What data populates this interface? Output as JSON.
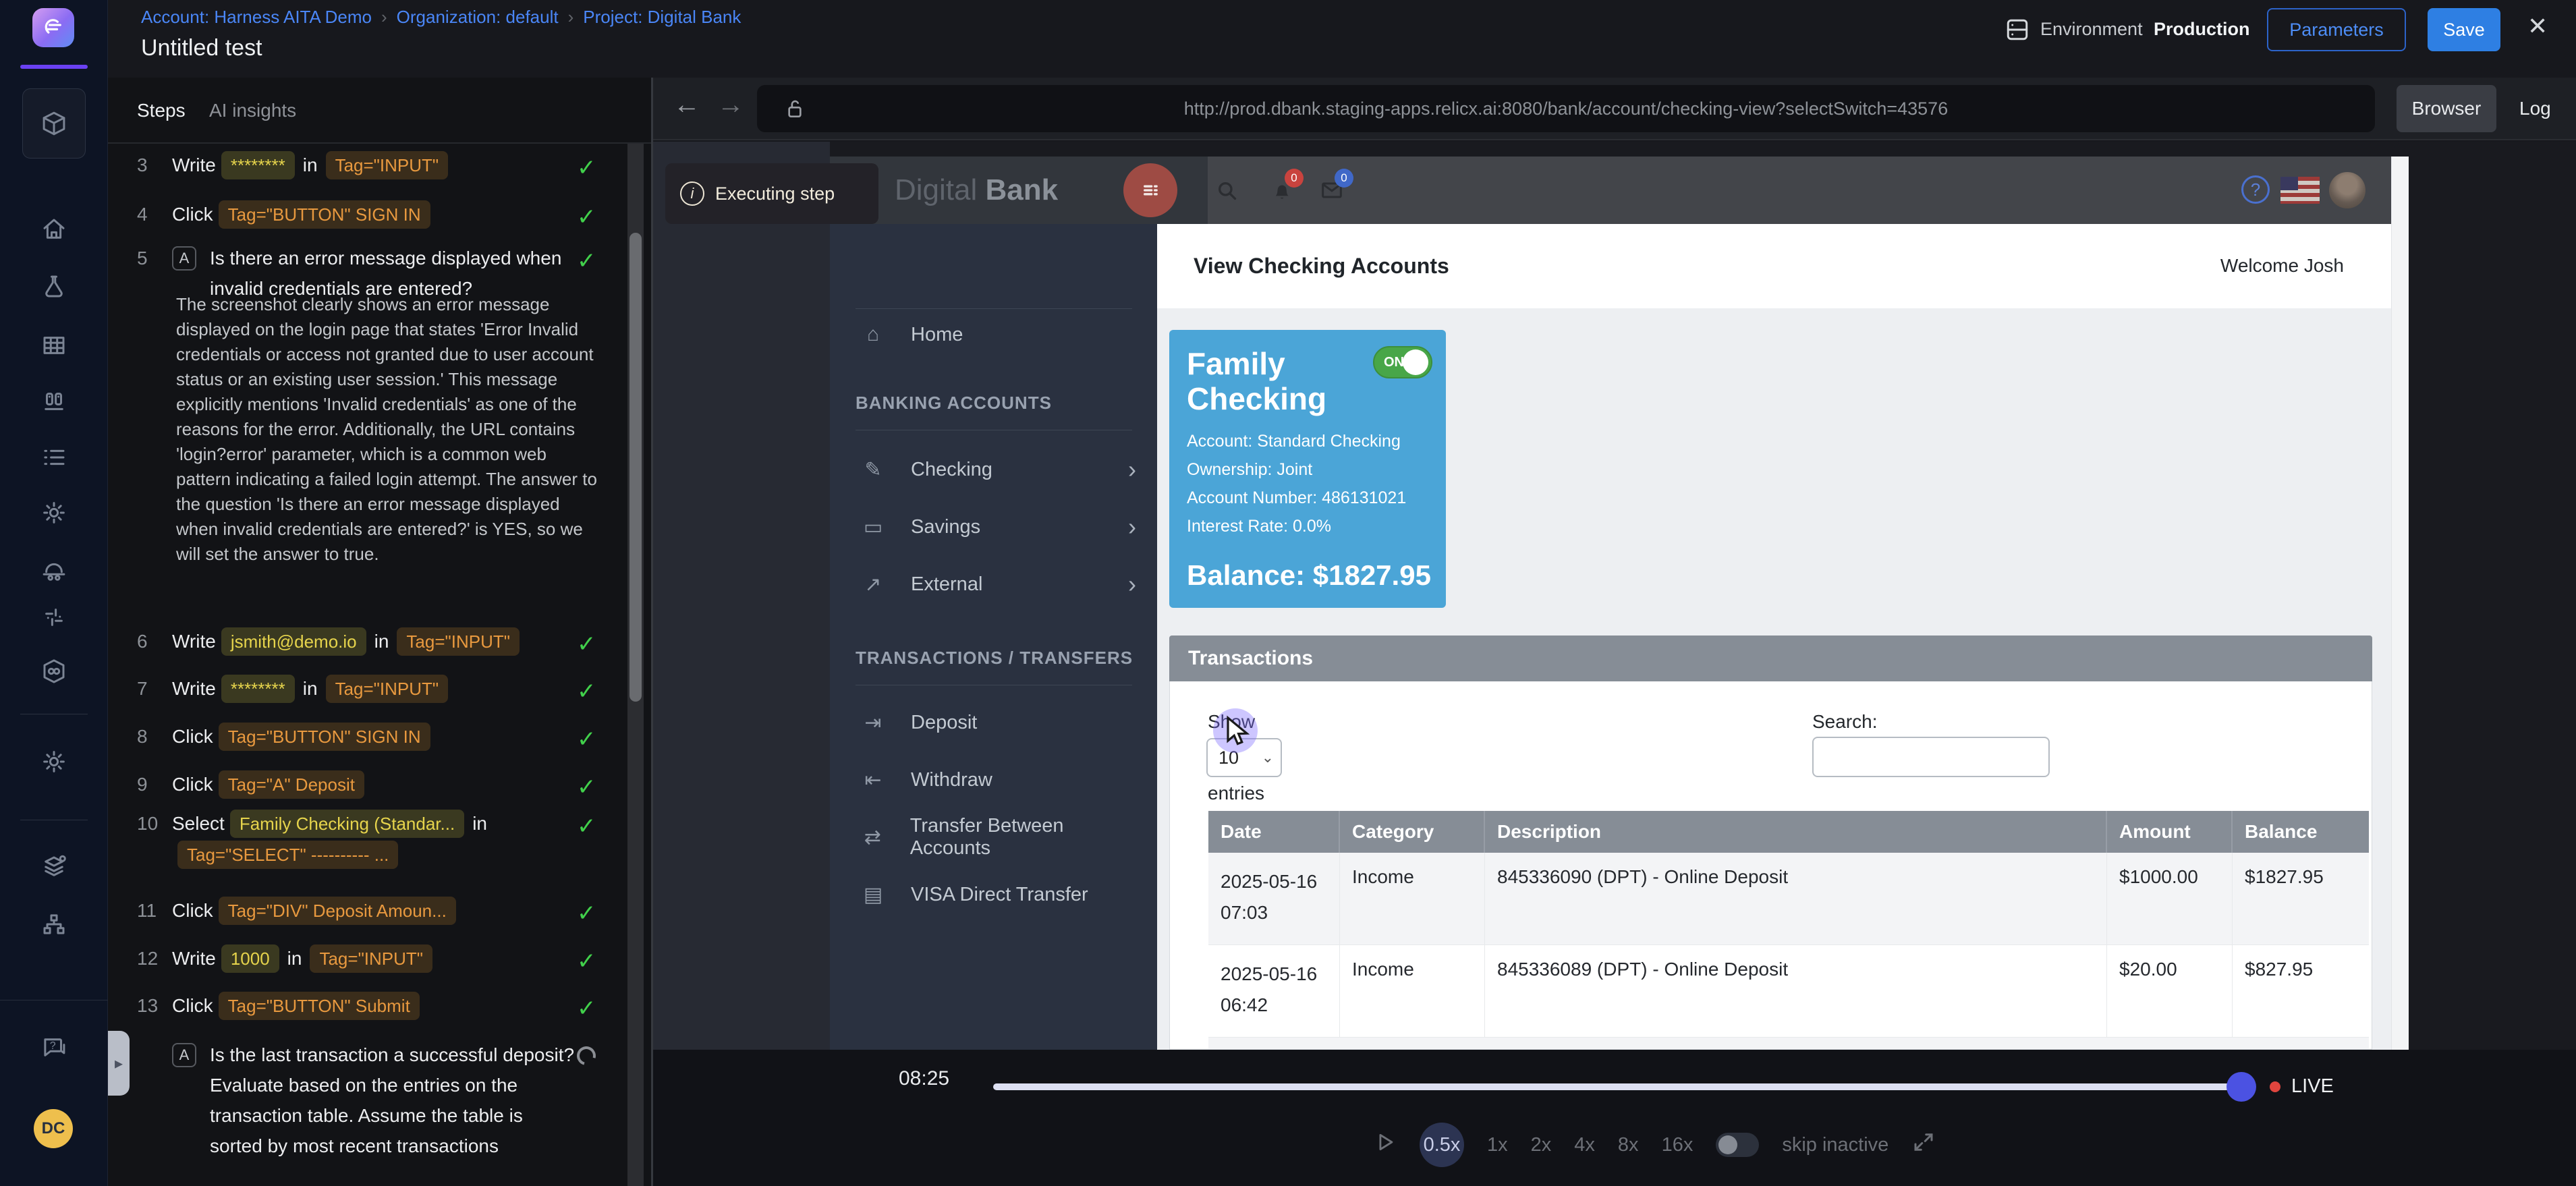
{
  "header": {
    "breadcrumb": [
      "Account: Harness AITA Demo",
      "Organization: default",
      "Project: Digital Bank"
    ],
    "title": "Untitled test",
    "environment_label": "Environment",
    "environment_value": "Production",
    "parameters_label": "Parameters",
    "save_label": "Save"
  },
  "app_sidebar": {
    "avatar_initials": "DC"
  },
  "steps_panel": {
    "tabs": [
      "Steps",
      "AI insights"
    ],
    "steps": [
      {
        "num": "3",
        "status": "pass",
        "segments": [
          {
            "k": "a",
            "t": "Write"
          },
          {
            "k": "v",
            "t": "********"
          },
          {
            "k": "p",
            "t": "in"
          },
          {
            "k": "s",
            "t": "Tag=\"INPUT\""
          }
        ]
      },
      {
        "num": "4",
        "status": "pass",
        "segments": [
          {
            "k": "a",
            "t": "Click"
          },
          {
            "k": "s",
            "t": "Tag=\"BUTTON\" SIGN IN"
          }
        ]
      },
      {
        "num": "5",
        "status": "pass",
        "badge": "A",
        "question": "Is there an error message displayed when invalid credentials are entered?"
      },
      {
        "num": "6",
        "status": "pass",
        "segments": [
          {
            "k": "a",
            "t": "Write"
          },
          {
            "k": "v",
            "t": "jsmith@demo.io"
          },
          {
            "k": "p",
            "t": "in"
          },
          {
            "k": "s",
            "t": "Tag=\"INPUT\""
          }
        ]
      },
      {
        "num": "7",
        "status": "pass",
        "segments": [
          {
            "k": "a",
            "t": "Write"
          },
          {
            "k": "v",
            "t": "********"
          },
          {
            "k": "p",
            "t": "in"
          },
          {
            "k": "s",
            "t": "Tag=\"INPUT\""
          }
        ]
      },
      {
        "num": "8",
        "status": "pass",
        "segments": [
          {
            "k": "a",
            "t": "Click"
          },
          {
            "k": "s",
            "t": "Tag=\"BUTTON\" SIGN IN"
          }
        ]
      },
      {
        "num": "9",
        "status": "pass",
        "segments": [
          {
            "k": "a",
            "t": "Click"
          },
          {
            "k": "s",
            "t": "Tag=\"A\" Deposit"
          }
        ]
      },
      {
        "num": "10",
        "status": "pass",
        "segments": [
          {
            "k": "a",
            "t": "Select"
          },
          {
            "k": "v",
            "t": "Family Checking (Standar..."
          },
          {
            "k": "p",
            "t": "in"
          },
          {
            "k": "br"
          },
          {
            "k": "s",
            "t": "Tag=\"SELECT\" ---------- ..."
          }
        ]
      },
      {
        "num": "11",
        "status": "pass",
        "segments": [
          {
            "k": "a",
            "t": "Click"
          },
          {
            "k": "s",
            "t": "Tag=\"DIV\" Deposit Amoun..."
          }
        ]
      },
      {
        "num": "12",
        "status": "pass",
        "segments": [
          {
            "k": "a",
            "t": "Write"
          },
          {
            "k": "v",
            "t": "1000"
          },
          {
            "k": "p",
            "t": "in"
          },
          {
            "k": "s",
            "t": "Tag=\"INPUT\""
          }
        ]
      },
      {
        "num": "13",
        "status": "pass",
        "segments": [
          {
            "k": "a",
            "t": "Click"
          },
          {
            "k": "s",
            "t": "Tag=\"BUTTON\" Submit"
          }
        ]
      },
      {
        "num": "",
        "status": "running",
        "badge": "A",
        "question": "Is the last transaction a successful deposit? Evaluate based on the entries on the transaction table. Assume the table is sorted by most recent transactions"
      }
    ],
    "note": "The screenshot clearly shows an error message displayed on the login page that states 'Error Invalid credentials or access not granted due to user account status or an existing user session.' This message explicitly mentions 'Invalid credentials' as one of the reasons for the error. Additionally, the URL contains 'login?error' parameter, which is a common web pattern indicating a failed login attempt. The answer to the question 'Is there an error message displayed when invalid credentials are entered?' is YES, so we will set the answer to true."
  },
  "browser": {
    "url": "http://prod.dbank.staging-apps.relicx.ai:8080/bank/account/checking-view?selectSwitch=43576",
    "browser_label": "Browser",
    "log_label": "Log",
    "overlay_label": "Executing step"
  },
  "bank": {
    "brand_light": "Digital",
    "brand_bold": "Bank",
    "notification_count": "0",
    "mail_count": "0",
    "help_glyph": "?",
    "nav_items": [
      {
        "type": "item",
        "icon": "home-icon",
        "label": "Home"
      },
      {
        "type": "section",
        "label": "BANKING ACCOUNTS"
      },
      {
        "type": "item",
        "icon": "edit-icon",
        "label": "Checking",
        "chevron": true
      },
      {
        "type": "item",
        "icon": "money-icon",
        "label": "Savings",
        "chevron": true
      },
      {
        "type": "item",
        "icon": "external-icon",
        "label": "External",
        "chevron": true
      },
      {
        "type": "section",
        "label": "TRANSACTIONS / TRANSFERS"
      },
      {
        "type": "item",
        "icon": "deposit-icon",
        "label": "Deposit"
      },
      {
        "type": "item",
        "icon": "withdraw-icon",
        "label": "Withdraw"
      },
      {
        "type": "item",
        "icon": "transfer-icon",
        "label": "Transfer Between Accounts"
      },
      {
        "type": "item",
        "icon": "card-icon",
        "label": "VISA Direct Transfer"
      }
    ],
    "page_title": "View Checking Accounts",
    "welcome": "Welcome Josh",
    "card": {
      "title": "Family Checking",
      "toggle_label": "ON",
      "details": [
        "Account: Standard Checking",
        "Ownership: Joint",
        "Account Number: 486131021",
        "Interest Rate: 0.0%"
      ],
      "balance": "Balance: $1827.95"
    },
    "transactions": {
      "title": "Transactions",
      "show_label": "Show",
      "page_size": "10",
      "entries_label": "entries",
      "search_label": "Search:",
      "search_value": "",
      "columns": [
        "Date",
        "Category",
        "Description",
        "Amount",
        "Balance"
      ],
      "rows": [
        {
          "date": "2025-05-16",
          "time": "07:03",
          "category": "Income",
          "description": "845336090 (DPT) - Online Deposit",
          "amount": "$1000.00",
          "balance": "$1827.95"
        },
        {
          "date": "2025-05-16",
          "time": "06:42",
          "category": "Income",
          "description": "845336089 (DPT) - Online Deposit",
          "amount": "$20.00",
          "balance": "$827.95"
        }
      ]
    }
  },
  "player": {
    "time": "08:25",
    "live_label": "LIVE",
    "speeds": [
      "0.5x",
      "1x",
      "2x",
      "4x",
      "8x",
      "16x"
    ],
    "active_speed": "0.5x",
    "skip_label": "skip inactive"
  },
  "colors": {
    "accent_blue": "#2e7fe3",
    "link_blue": "#4a86f7",
    "pass_green": "#41d04b",
    "value_yellow": "#e6d44c",
    "selector_orange": "#e8993f",
    "card_blue": "#4ba5d7",
    "toggle_green": "#48a648",
    "live_red": "#e0453e",
    "progress_knob": "#4b52e2"
  }
}
